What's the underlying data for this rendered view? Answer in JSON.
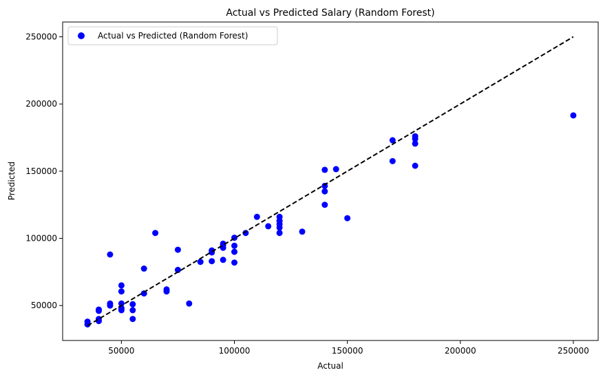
{
  "chart_data": {
    "type": "scatter",
    "title": "Actual vs Predicted Salary (Random Forest)",
    "xlabel": "Actual",
    "ylabel": "Predicted",
    "xlim": [
      24000,
      261000
    ],
    "ylim": [
      24000,
      261000
    ],
    "xticks": [
      50000,
      100000,
      150000,
      200000,
      250000
    ],
    "yticks": [
      50000,
      100000,
      150000,
      200000,
      250000
    ],
    "grid": false,
    "legend": {
      "location": "upper-left",
      "label": "Actual vs Predicted (Random Forest)"
    },
    "series": [
      {
        "name": "Actual vs Predicted (Random Forest)",
        "color": "#0000ff",
        "marker": "circle",
        "points": [
          [
            35000,
            36000
          ],
          [
            35000,
            38000
          ],
          [
            40000,
            38500
          ],
          [
            40000,
            40000
          ],
          [
            40000,
            46000
          ],
          [
            40000,
            47000
          ],
          [
            45000,
            50000
          ],
          [
            45000,
            51500
          ],
          [
            45000,
            88000
          ],
          [
            50000,
            46500
          ],
          [
            50000,
            48000
          ],
          [
            50000,
            51500
          ],
          [
            50000,
            60500
          ],
          [
            50000,
            65000
          ],
          [
            55000,
            40000
          ],
          [
            55000,
            46500
          ],
          [
            55000,
            51000
          ],
          [
            60000,
            59000
          ],
          [
            60000,
            77500
          ],
          [
            65000,
            104000
          ],
          [
            70000,
            60500
          ],
          [
            70000,
            62000
          ],
          [
            75000,
            76500
          ],
          [
            75000,
            91500
          ],
          [
            80000,
            51500
          ],
          [
            85000,
            82500
          ],
          [
            90000,
            83000
          ],
          [
            90000,
            89500
          ],
          [
            90000,
            91000
          ],
          [
            95000,
            84000
          ],
          [
            95000,
            93000
          ],
          [
            95000,
            95000
          ],
          [
            95000,
            96000
          ],
          [
            100000,
            82000
          ],
          [
            100000,
            90000
          ],
          [
            100000,
            94500
          ],
          [
            100000,
            100500
          ],
          [
            105000,
            104000
          ],
          [
            110000,
            116000
          ],
          [
            115000,
            109000
          ],
          [
            120000,
            104000
          ],
          [
            120000,
            108000
          ],
          [
            120000,
            110500
          ],
          [
            120000,
            113000
          ],
          [
            120000,
            116000
          ],
          [
            130000,
            105000
          ],
          [
            140000,
            125000
          ],
          [
            140000,
            135000
          ],
          [
            140000,
            139000
          ],
          [
            140000,
            151000
          ],
          [
            145000,
            151500
          ],
          [
            150000,
            115000
          ],
          [
            170000,
            157500
          ],
          [
            170000,
            173000
          ],
          [
            180000,
            154000
          ],
          [
            180000,
            170500
          ],
          [
            180000,
            174000
          ],
          [
            180000,
            176000
          ],
          [
            250000,
            191500
          ]
        ]
      }
    ],
    "reference_line": {
      "style": "dashed",
      "color": "#000000",
      "from": [
        35000,
        35000
      ],
      "to": [
        250000,
        250000
      ]
    }
  }
}
